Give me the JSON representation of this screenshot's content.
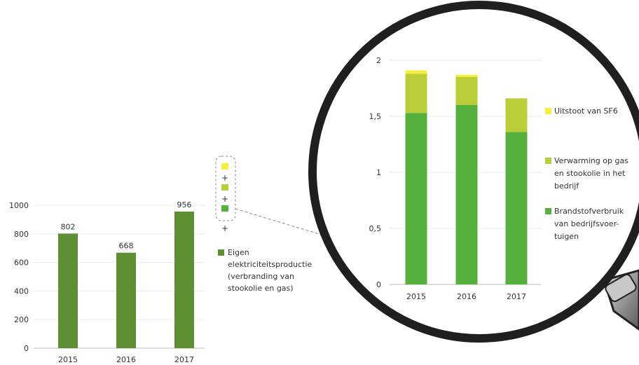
{
  "colors": {
    "dark_green": "#5f8f33",
    "medium_green": "#55b03d",
    "light_green": "#bccd3a",
    "yellow": "#f6ef3e",
    "axis": "#999999",
    "text": "#333333",
    "lens_rim": "#1f1f1f"
  },
  "legend_symbols": [
    "+",
    "+",
    "+"
  ],
  "chart_data": [
    {
      "type": "bar",
      "categories": [
        "2015",
        "2016",
        "2017"
      ],
      "values": [
        802,
        668,
        956
      ],
      "data_labels": [
        "802",
        "668",
        "956"
      ],
      "ylim": [
        0,
        1000
      ],
      "yticks": [
        "0",
        "200",
        "400",
        "600",
        "800",
        "1000"
      ],
      "grid": true,
      "legend": {
        "position": "right",
        "entries": [
          "Eigen elektriciteitsproductie (verbranding van stookolie en gas)"
        ]
      },
      "series": [
        {
          "name": "Eigen elektriciteitsproductie (verbranding van stookolie en gas)",
          "label_lines": [
            "Eigen",
            "elektriciteitsproductie",
            "(verbranding van",
            "stookolie en gas)"
          ],
          "color": "#5f8f33",
          "values": [
            802,
            668,
            956
          ]
        }
      ]
    },
    {
      "type": "bar",
      "stacked": true,
      "categories": [
        "2015",
        "2016",
        "2017"
      ],
      "ylim": [
        0,
        2
      ],
      "yticks": [
        "0",
        "0,5",
        "1",
        "1,5",
        "2"
      ],
      "grid": true,
      "legend": {
        "position": "right",
        "entries": [
          "Uitstoot van SF6",
          "Verwarming op gas en stookolie in het bedrijf",
          "Brandstofverbruik van bedrijfsvoertuigen"
        ]
      },
      "series": [
        {
          "name": "Brandstofverbruik van bedrijfsvoertuigen",
          "label_lines": [
            "Brandstofverbruik",
            "van bedrijfsvoer-",
            "tuigen"
          ],
          "color": "#55b03d",
          "values": [
            1.53,
            1.6,
            1.36
          ]
        },
        {
          "name": "Verwarming op gas en stookolie in het bedrijf",
          "label_lines": [
            "Verwarming op gas",
            "en stookolie in het",
            "bedrijf"
          ],
          "color": "#bccd3a",
          "values": [
            0.35,
            0.25,
            0.3
          ]
        },
        {
          "name": "Uitstoot van SF6",
          "label_lines": [
            "Uitstoot van SF6"
          ],
          "color": "#f6ef3e",
          "values": [
            0.03,
            0.02,
            0.0
          ]
        }
      ]
    }
  ]
}
